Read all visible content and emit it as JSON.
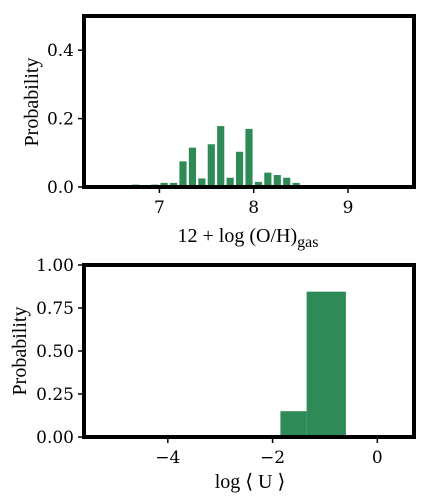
{
  "chart_data": [
    {
      "type": "bar",
      "xlabel": "12 + log (O/H)",
      "xlabel_sub": "gas",
      "ylabel": "Probability",
      "xlim": [
        6.2,
        9.7
      ],
      "ylim": [
        0,
        0.5
      ],
      "xticks": [
        7,
        8,
        9
      ],
      "yticks": [
        0.0,
        0.2,
        0.4
      ],
      "ytick_labels": [
        "0.0",
        "0.2",
        "0.4"
      ],
      "bar_color": "#2e8b57",
      "bin_width": 0.1,
      "bins": [
        {
          "x0": 6.6,
          "value": 0.003
        },
        {
          "x0": 6.7,
          "value": 0.007
        },
        {
          "x0": 6.8,
          "value": 0.004
        },
        {
          "x0": 6.9,
          "value": 0.007
        },
        {
          "x0": 7.0,
          "value": 0.012
        },
        {
          "x0": 7.1,
          "value": 0.012
        },
        {
          "x0": 7.2,
          "value": 0.075
        },
        {
          "x0": 7.3,
          "value": 0.115
        },
        {
          "x0": 7.4,
          "value": 0.025
        },
        {
          "x0": 7.5,
          "value": 0.125
        },
        {
          "x0": 7.6,
          "value": 0.178
        },
        {
          "x0": 7.7,
          "value": 0.027
        },
        {
          "x0": 7.8,
          "value": 0.103
        },
        {
          "x0": 7.9,
          "value": 0.17
        },
        {
          "x0": 8.0,
          "value": 0.015
        },
        {
          "x0": 8.1,
          "value": 0.042
        },
        {
          "x0": 8.2,
          "value": 0.035
        },
        {
          "x0": 8.3,
          "value": 0.027
        },
        {
          "x0": 8.4,
          "value": 0.012
        },
        {
          "x0": 8.5,
          "value": 0.003
        }
      ]
    },
    {
      "type": "bar",
      "xlabel": "log ⟨ U ⟩",
      "ylabel": "Probability",
      "xlim": [
        -5.6,
        0.7
      ],
      "ylim": [
        0,
        1.0
      ],
      "xticks": [
        -4,
        -2,
        0
      ],
      "xtick_labels": [
        "−4",
        "−2",
        "0"
      ],
      "yticks": [
        0.0,
        0.25,
        0.5,
        0.75,
        1.0
      ],
      "ytick_labels": [
        "0.00",
        "0.25",
        "0.50",
        "0.75",
        "1.00"
      ],
      "bar_color": "#2e8b57",
      "bins": [
        {
          "x0": -1.85,
          "x1": -1.35,
          "value": 0.15
        },
        {
          "x0": -1.35,
          "x1": -0.6,
          "value": 0.845
        }
      ]
    }
  ]
}
